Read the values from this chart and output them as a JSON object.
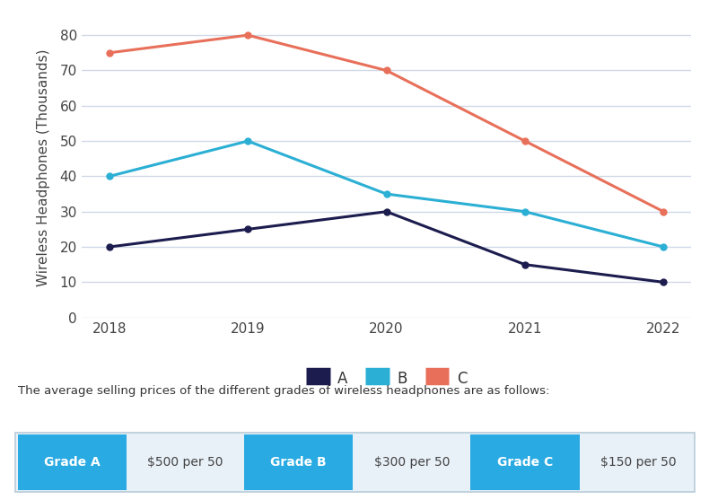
{
  "years": [
    2018,
    2019,
    2020,
    2021,
    2022
  ],
  "series_A": [
    20,
    25,
    30,
    15,
    10
  ],
  "series_B": [
    40,
    50,
    35,
    30,
    20
  ],
  "series_C": [
    75,
    80,
    70,
    50,
    30
  ],
  "color_A": "#1c1c4e",
  "color_B": "#2bafd4",
  "color_C": "#e8705a",
  "ylabel": "Wireless Headphones (Thousands)",
  "ylim": [
    0,
    85
  ],
  "yticks": [
    0,
    10,
    20,
    30,
    40,
    50,
    60,
    70,
    80
  ],
  "legend_labels": [
    "A",
    "B",
    "C"
  ],
  "bg_color": "#ffffff",
  "plot_bg_color": "#ffffff",
  "grid_color": "#d0d8e8",
  "info_text": "The average selling prices of the different grades of wireless headphones are as follows:",
  "grade_button_color": "#29aae2",
  "grade_button_text_color": "#ffffff",
  "grade_A_label": "Grade A",
  "grade_A_price": "$500 per 50",
  "grade_B_label": "Grade B",
  "grade_B_price": "$300 per 50",
  "grade_C_label": "Grade C",
  "grade_C_price": "$150 per 50",
  "table_border_color": "#b8ccd8",
  "price_cell_bg": "#e8f0f8"
}
